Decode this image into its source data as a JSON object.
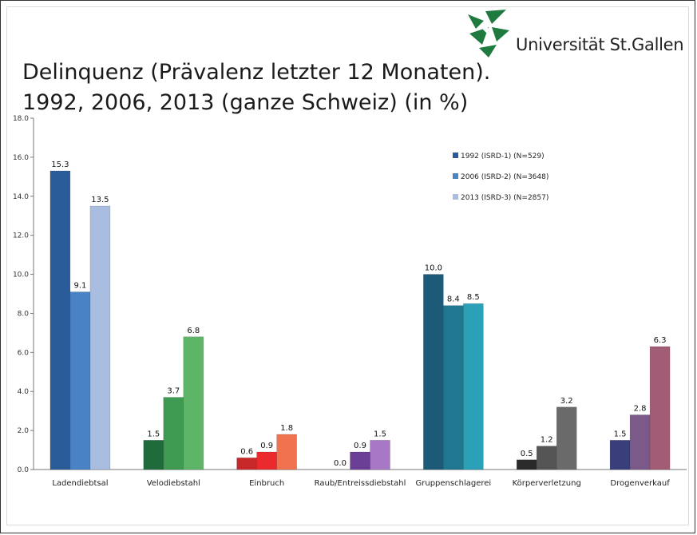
{
  "slide": {
    "title_line1": "Delinquenz (Prävalenz letzter 12 Monaten).",
    "title_line2": "1992, 2006, 2013 (ganze Schweiz) (in %)",
    "logo_text": "Universität St.Gallen"
  },
  "chart_data": {
    "type": "bar",
    "categories": [
      "Ladendiebtsal",
      "Velodiebstahl",
      "Einbruch",
      "Raub/Entreissdiebstahl",
      "Gruppenschlagerei",
      "Körperverletzung",
      "Drogenverkauf"
    ],
    "series": [
      {
        "name": "1992 (ISRD-1) (N=529)",
        "values": [
          15.3,
          1.5,
          0.6,
          0.0,
          10.0,
          0.5,
          1.5
        ]
      },
      {
        "name": "2006 (ISRD-2) (N=3648)",
        "values": [
          9.1,
          3.7,
          0.9,
          0.9,
          8.4,
          1.2,
          2.8
        ]
      },
      {
        "name": "2013 (ISRD-3) (N=2857)",
        "values": [
          13.5,
          6.8,
          1.8,
          1.5,
          8.5,
          3.2,
          6.3
        ]
      }
    ],
    "ylim": [
      0,
      18
    ],
    "yticks": [
      "0.0",
      "2.0",
      "4.0",
      "6.0",
      "8.0",
      "10.0",
      "12.0",
      "14.0",
      "16.0",
      "18.0"
    ],
    "data_labels": [
      [
        "15.3",
        "1.5",
        "0.6",
        "0.0",
        "10.0",
        "0.5",
        "1.5"
      ],
      [
        "9.1",
        "3.7",
        "0.9",
        "0.9",
        "8.4",
        "1.2",
        "2.8"
      ],
      [
        "13.5",
        "6.8",
        "1.8",
        "1.5",
        "8.5",
        "3.2",
        "6.3"
      ]
    ],
    "colors": [
      [
        "#2b5c9a",
        "#4a82c6",
        "#a9bde0"
      ],
      [
        "#1f6b3c",
        "#3f9a52",
        "#5fb567"
      ],
      [
        "#c8282a",
        "#ea2a2c",
        "#f0724f"
      ],
      [
        "#2f2152",
        "#6a3f95",
        "#a678c5"
      ],
      [
        "#1c5a78",
        "#1f7890",
        "#2aa1b7"
      ],
      [
        "#2a2a2a",
        "#555555",
        "#6a6a6a"
      ],
      [
        "#3a3e7a",
        "#7b5a8a",
        "#a15d76"
      ]
    ],
    "legend_colors": [
      "#2b5c9a",
      "#4a82c6",
      "#a9bde0"
    ],
    "legend_position": "top-right",
    "grid": false
  }
}
